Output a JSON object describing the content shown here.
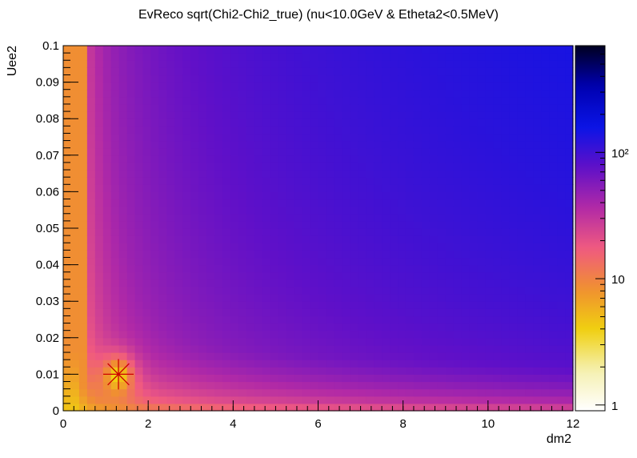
{
  "chart_data": {
    "type": "heatmap",
    "title": "EvReco sqrt(Chi2-Chi2_true) (nu<10.0GeV & Etheta2<0.5MeV)",
    "xlabel": "dm2",
    "ylabel": "Uee2",
    "xlim": [
      0,
      12
    ],
    "ylim": [
      0,
      0.1
    ],
    "xticks": [
      "0",
      "2",
      "4",
      "6",
      "8",
      "10",
      "12"
    ],
    "yticks": [
      "0",
      "0.01",
      "0.02",
      "0.03",
      "0.04",
      "0.05",
      "0.06",
      "0.07",
      "0.08",
      "0.09",
      "0.1"
    ],
    "z_scale": "log",
    "zlim": [
      0.9,
      700
    ],
    "zticks": [
      {
        "value": 1,
        "label": "1"
      },
      {
        "value": 10,
        "label": "10"
      },
      {
        "value": 100,
        "label": "10²"
      }
    ],
    "marker": {
      "x": 1.3,
      "y": 0.01,
      "color": "#cc0000",
      "symbol": "star"
    },
    "colors": {
      "palette": [
        "#ffffff",
        "#f5f0b0",
        "#f0d010",
        "#f09030",
        "#f05a80",
        "#b22aa6",
        "#6010c8",
        "#0a14e6",
        "#0000b0",
        "#000020"
      ]
    },
    "grid": false
  }
}
